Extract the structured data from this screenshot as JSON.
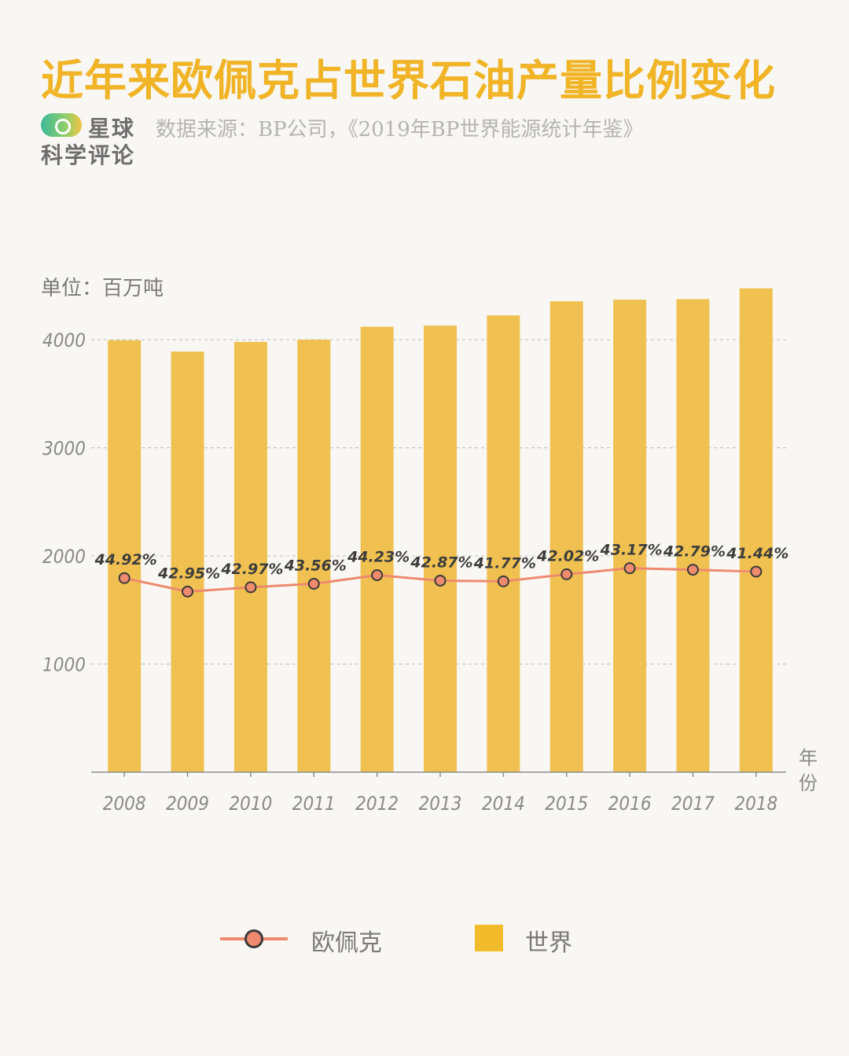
{
  "title": "近年来欧佩克占世界石油产量比例变化",
  "logo": {
    "line1": "星球",
    "line2": "科学评论"
  },
  "source": "数据来源：BP公司，《2019年BP世界能源统计年鉴》",
  "unit_label": "单位：百万吨",
  "x_unit_label": [
    "年",
    "份"
  ],
  "legend": {
    "line_label": "欧佩克",
    "bar_label": "世界"
  },
  "colors": {
    "bar": "#f0c150",
    "line": "#ee8a6e",
    "title": "#f0b426"
  },
  "chart_data": {
    "type": "bar",
    "title": "近年来欧佩克占世界石油产量比例变化",
    "ylabel": "单位：百万吨",
    "xlabel": "年份",
    "ylim": [
      0,
      4500
    ],
    "yticks": [
      1000,
      2000,
      3000,
      4000
    ],
    "grid": true,
    "legend_position": "bottom",
    "categories": [
      "2008",
      "2009",
      "2010",
      "2011",
      "2012",
      "2013",
      "2014",
      "2015",
      "2016",
      "2017",
      "2018"
    ],
    "series": [
      {
        "name": "世界",
        "type": "bar",
        "values": [
          3995,
          3890,
          3980,
          4000,
          4120,
          4130,
          4225,
          4355,
          4370,
          4375,
          4475
        ]
      },
      {
        "name": "欧佩克",
        "type": "line",
        "values": [
          1795,
          1670,
          1710,
          1742,
          1822,
          1771,
          1765,
          1830,
          1886,
          1872,
          1855
        ],
        "labels": [
          "44.92%",
          "42.95%",
          "42.97%",
          "43.56%",
          "44.23%",
          "42.87%",
          "41.77%",
          "42.02%",
          "43.17%",
          "42.79%",
          "41.44%"
        ]
      }
    ]
  }
}
